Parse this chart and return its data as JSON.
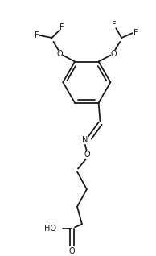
{
  "bg_color": "#ffffff",
  "line_color": "#1a1a1a",
  "line_width": 1.3,
  "font_size": 7.0,
  "figsize": [
    1.94,
    3.18
  ],
  "dpi": 100,
  "xlim": [
    0.0,
    1.94
  ],
  "ylim": [
    0.0,
    3.18
  ]
}
